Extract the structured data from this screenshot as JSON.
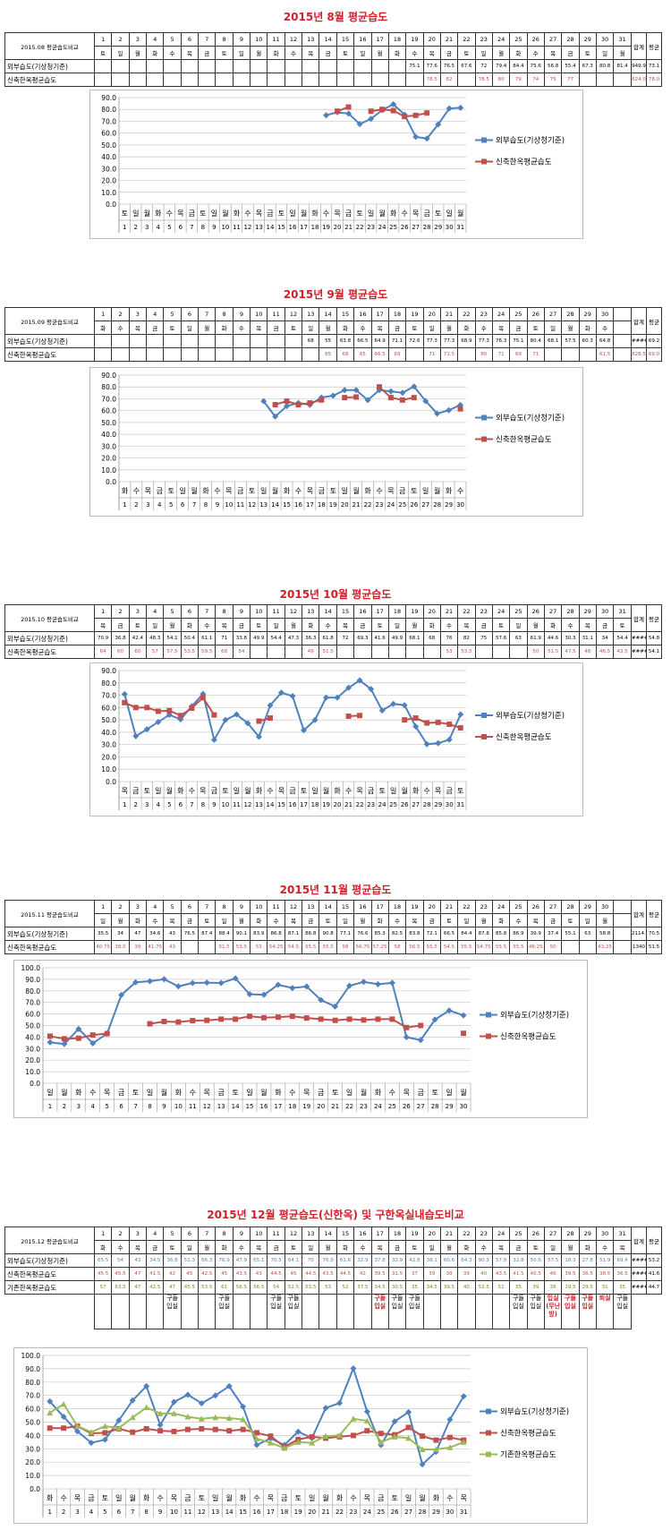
{
  "colors": {
    "outdoor": "#4f81bd",
    "new": "#c0504d",
    "old": "#9bbb59",
    "title": "#d0202a"
  },
  "labels": {
    "outdoor": "외부습도(기상청기준)",
    "new": "신축한옥평균습도",
    "old": "기존한옥평균습도",
    "sum": "합계",
    "avg": "평균"
  },
  "months": [
    {
      "title": "2015년 8월 평균습도",
      "table_label": "2015.08 평균습도비교",
      "ymax": 90,
      "weekdays": [
        "토",
        "일",
        "월",
        "화",
        "수",
        "목",
        "금",
        "토",
        "일",
        "월",
        "화",
        "수",
        "목",
        "금",
        "토",
        "일",
        "월",
        "화",
        "수",
        "목",
        "금",
        "토",
        "일",
        "월",
        "화",
        "수",
        "목",
        "금",
        "토",
        "일",
        "월"
      ],
      "outdoor": [
        null,
        null,
        null,
        null,
        null,
        null,
        null,
        null,
        null,
        null,
        null,
        null,
        null,
        null,
        null,
        null,
        null,
        null,
        75.1,
        77.6,
        76.5,
        67.6,
        72.0,
        79.4,
        84.4,
        75.6,
        56.8,
        55.4,
        67.3,
        80.8,
        81.4
      ],
      "new": [
        null,
        null,
        null,
        null,
        null,
        null,
        null,
        null,
        null,
        null,
        null,
        null,
        null,
        null,
        null,
        null,
        null,
        null,
        null,
        78.5,
        82,
        null,
        78.5,
        80,
        79,
        74,
        75,
        77,
        null,
        null,
        null
      ],
      "totals": {
        "outdoor": [
          "949.9",
          "73.1"
        ],
        "new": [
          "624.0",
          "78.0"
        ]
      }
    },
    {
      "title": "2015년 9월 평균습도",
      "table_label": "2015.09 평균습도비교",
      "ymax": 90,
      "weekdays": [
        "화",
        "수",
        "목",
        "금",
        "토",
        "일",
        "월",
        "화",
        "수",
        "목",
        "금",
        "토",
        "일",
        "월",
        "화",
        "수",
        "목",
        "금",
        "토",
        "일",
        "월",
        "화",
        "수",
        "목",
        "금",
        "토",
        "일",
        "월",
        "화",
        "수"
      ],
      "outdoor": [
        null,
        null,
        null,
        null,
        null,
        null,
        null,
        null,
        null,
        null,
        null,
        null,
        68.0,
        55.0,
        63.8,
        66.5,
        64.9,
        71.1,
        72.6,
        77.3,
        77.3,
        68.9,
        77.3,
        76.3,
        75.1,
        80.4,
        68.1,
        57.5,
        60.3,
        64.8
      ],
      "new": [
        null,
        null,
        null,
        null,
        null,
        null,
        null,
        null,
        null,
        null,
        null,
        null,
        null,
        65.0,
        68.0,
        65.0,
        66.5,
        69.0,
        null,
        71.0,
        71.5,
        null,
        80.0,
        71.0,
        69.0,
        71.0,
        null,
        null,
        null,
        61.5
      ],
      "totals": {
        "outdoor": [
          "#####",
          "69.2"
        ],
        "new": [
          "828.5",
          "69.0"
        ]
      }
    },
    {
      "title": "2015년 10월 평균습도",
      "table_label": "2015.10 평균습도비교",
      "ymax": 90,
      "weekdays": [
        "목",
        "금",
        "토",
        "일",
        "월",
        "화",
        "수",
        "목",
        "금",
        "토",
        "일",
        "월",
        "화",
        "수",
        "목",
        "금",
        "토",
        "일",
        "월",
        "화",
        "수",
        "목",
        "금",
        "토",
        "일",
        "월",
        "화",
        "수",
        "목",
        "금",
        "토"
      ],
      "outdoor": [
        70.9,
        36.8,
        42.4,
        48.3,
        54.1,
        50.4,
        61.1,
        71.0,
        33.8,
        49.9,
        54.4,
        47.3,
        36.3,
        61.8,
        72.0,
        69.3,
        41.6,
        49.9,
        68.1,
        68.0,
        76.0,
        82.0,
        75.0,
        57.6,
        63.0,
        61.9,
        44.6,
        30.3,
        31.1,
        34.0,
        54.4
      ],
      "new": [
        64,
        60,
        60,
        57,
        57.5,
        53.5,
        59.5,
        68,
        54,
        null,
        null,
        null,
        49,
        51.5,
        null,
        null,
        null,
        null,
        null,
        null,
        53,
        53.5,
        null,
        null,
        null,
        50,
        51.5,
        47.5,
        48,
        46.5,
        43.5
      ],
      "totals": {
        "outdoor": [
          "#####",
          "54.8"
        ],
        "new": [
          "#####",
          "54.1"
        ]
      }
    },
    {
      "title": "2015년 11월 평균습도",
      "table_label": "2015.11 평균습도비교",
      "ymax": 100,
      "weekdays": [
        "일",
        "월",
        "화",
        "수",
        "목",
        "금",
        "토",
        "일",
        "월",
        "화",
        "수",
        "목",
        "금",
        "토",
        "일",
        "월",
        "화",
        "수",
        "목",
        "금",
        "토",
        "일",
        "월",
        "화",
        "수",
        "목",
        "금",
        "토",
        "일",
        "월"
      ],
      "outdoor": [
        35.5,
        34.0,
        47.0,
        34.6,
        43.0,
        76.5,
        87.4,
        88.4,
        90.1,
        83.9,
        86.8,
        87.1,
        86.8,
        90.8,
        77.1,
        76.6,
        85.3,
        82.5,
        83.8,
        72.1,
        66.5,
        84.4,
        87.8,
        85.8,
        86.9,
        39.9,
        37.4,
        55.1,
        63.0,
        58.8
      ],
      "new": [
        40.75,
        38.5,
        39,
        41.75,
        43,
        null,
        null,
        51.5,
        53.5,
        53,
        54.25,
        54.5,
        55.5,
        55.5,
        58,
        56.75,
        57.25,
        58,
        56.5,
        55.5,
        54.5,
        55.5,
        54.75,
        55.5,
        55.5,
        48.25,
        50,
        null,
        null,
        43.25
      ],
      "totals": {
        "outdoor": [
          "2114.7",
          "70.5"
        ],
        "new": [
          "1340",
          "51.5"
        ]
      }
    },
    {
      "title": "2015년 12월 평균습도(신한옥) 및 구한옥실내습도비교",
      "table_label": "2015.12 평균습도비교",
      "ymax": 100,
      "weekdays": [
        "화",
        "수",
        "목",
        "금",
        "토",
        "일",
        "월",
        "화",
        "수",
        "목",
        "금",
        "토",
        "일",
        "월",
        "화",
        "수",
        "목",
        "금",
        "토",
        "일",
        "월",
        "화",
        "수",
        "목",
        "금",
        "토",
        "일",
        "월",
        "화",
        "수",
        "목"
      ],
      "outdoor": [
        65.5,
        54.0,
        43.0,
        34.5,
        36.8,
        51.3,
        66.3,
        76.9,
        47.9,
        65.1,
        70.5,
        64.1,
        70.0,
        76.9,
        61.6,
        32.9,
        37.8,
        32.9,
        42.8,
        38.1,
        60.6,
        64.3,
        90.3,
        57.9,
        32.8,
        50.6,
        57.5,
        18.3,
        27.8,
        51.9,
        69.4
      ],
      "new": [
        45.5,
        45.5,
        47,
        41.5,
        42,
        45,
        42.5,
        45,
        43.5,
        43,
        44.5,
        45,
        44.5,
        43.5,
        44.5,
        42,
        39.5,
        31.5,
        37,
        39,
        38,
        39,
        40,
        43.5,
        41.5,
        40.5,
        46,
        39.5,
        36.5,
        38.5,
        36.5
      ],
      "old": [
        57,
        63.5,
        47,
        42.5,
        47,
        45.5,
        53.5,
        61,
        56.5,
        56.5,
        54,
        52.5,
        53.5,
        53,
        52,
        37.5,
        34.5,
        30.5,
        35,
        34.5,
        39.5,
        40,
        52.5,
        51,
        35,
        39,
        38,
        29.5,
        29.5,
        31,
        35
      ],
      "totals": {
        "outdoor": [
          "#####",
          "53.2"
        ],
        "new": [
          "#####",
          "41.6"
        ],
        "old": [
          "#####",
          "44.7"
        ]
      },
      "annotations": {
        "5": "구들입실",
        "8": "구들입실",
        "11": "구들입실",
        "12": "구들입실",
        "17": "구들입실",
        "18": "구들입실",
        "19": "구들입실",
        "25": "구들입실",
        "26": "구들입실",
        "27": "입실(무난방)",
        "28": "구들입실",
        "29": "구들입실",
        "30": "퇴실",
        "31": "구들입실"
      },
      "annotations_red": [
        "17",
        "27",
        "28",
        "29",
        "30"
      ]
    }
  ]
}
